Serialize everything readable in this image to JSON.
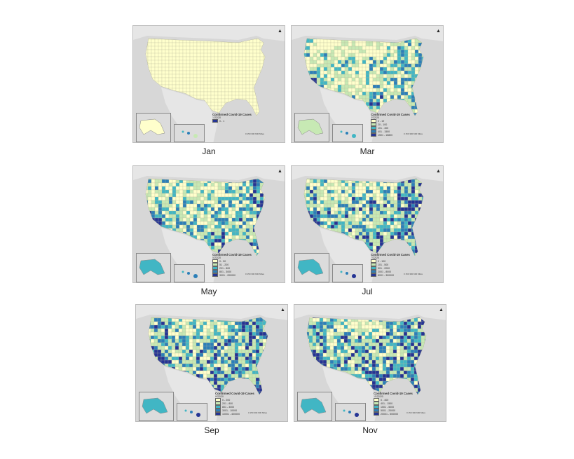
{
  "legend_title": "Confirmed Covid-19 Cases",
  "scale_text": "0   150  300     600 Miles",
  "colors": [
    "#ffffcc",
    "#c7e9b4",
    "#41b6c4",
    "#2c7fb8",
    "#253494"
  ],
  "panels": [
    {
      "caption": "Jan",
      "intensity": 0,
      "legend_date": "1/22/20",
      "legend_rows": [
        "0 - 1"
      ]
    },
    {
      "caption": "Mar",
      "intensity": 1,
      "legend_date": "3/22/20",
      "legend_rows": [
        "0 - 19",
        "20 - 100",
        "101 - 400",
        "401 - 1500",
        "1501 - 15800"
      ]
    },
    {
      "caption": "May",
      "intensity": 2,
      "legend_date": "5/22/20",
      "legend_rows": [
        "0 - 50",
        "51 - 200",
        "201 - 800",
        "801 - 3000",
        "3001 - 200000"
      ]
    },
    {
      "caption": "Jul",
      "intensity": 3,
      "legend_date": "7/22/20",
      "legend_rows": [
        "0 - 100",
        "101 - 500",
        "501 - 2000",
        "2001 - 8000",
        "8001 - 300000"
      ]
    },
    {
      "caption": "Sep",
      "intensity": 3,
      "legend_date": "9/22/20",
      "legend_rows": [
        "0 - 200",
        "201 - 800",
        "801 - 3000",
        "3001 - 10000",
        "10001 - 400000"
      ]
    },
    {
      "caption": "Nov",
      "intensity": 3,
      "legend_date": "11/22/20",
      "legend_rows": [
        "0 - 400",
        "401 - 1500",
        "1501 - 5000",
        "5001 - 20000",
        "20001 - 500000"
      ]
    }
  ]
}
